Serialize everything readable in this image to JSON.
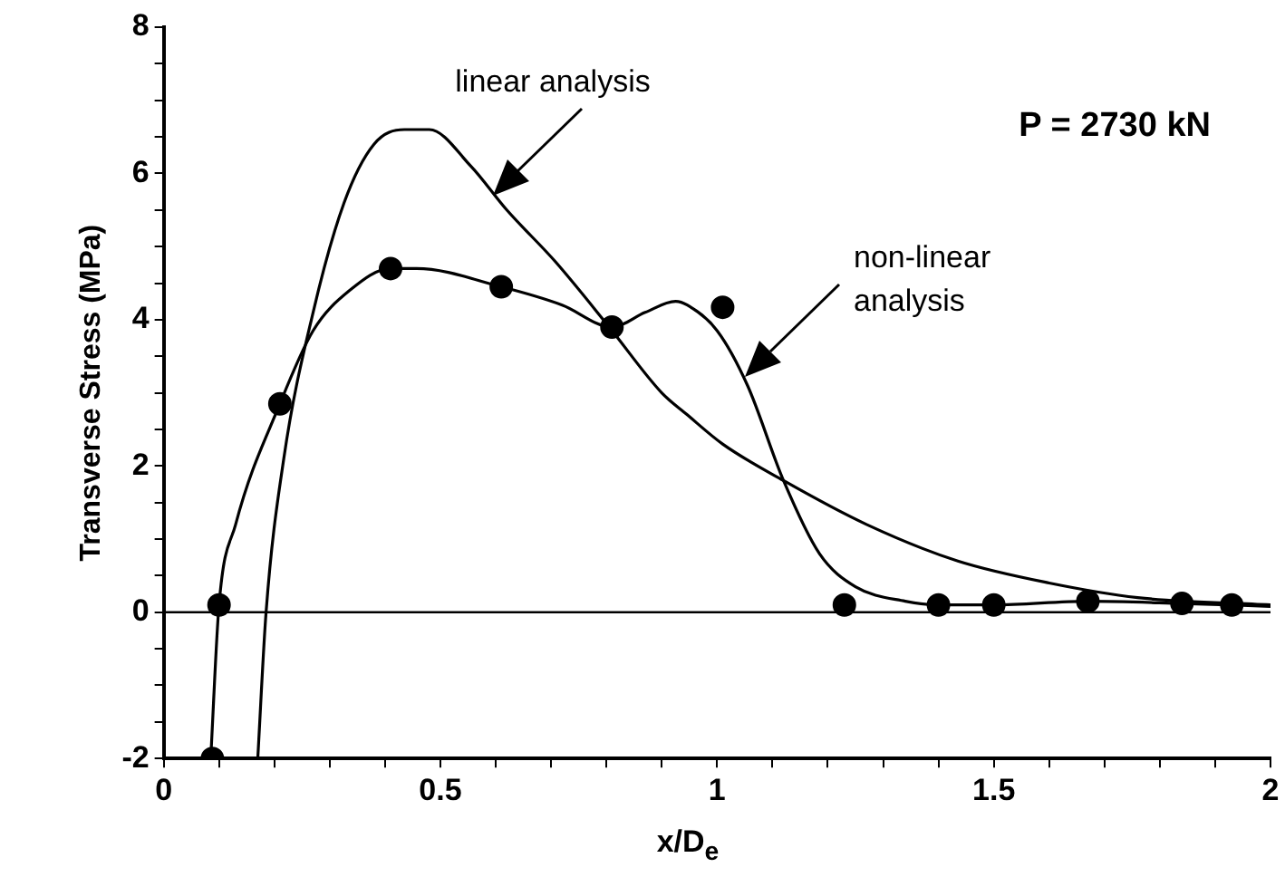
{
  "chart_data": {
    "type": "line",
    "xlabel": "x/D$_{e}$",
    "ylabel": "Transverse Stress (MPa)",
    "xlim": [
      0,
      2
    ],
    "ylim": [
      -2,
      8
    ],
    "xticks": [
      0,
      {
        "value": 0.1,
        "label": null
      },
      {
        "value": 0.2,
        "label": null
      },
      {
        "value": 0.3,
        "label": null
      },
      {
        "value": 0.4,
        "label": null
      },
      0.5,
      {
        "value": 0.6,
        "label": null
      },
      {
        "value": 0.7,
        "label": null
      },
      {
        "value": 0.8,
        "label": null
      },
      {
        "value": 0.9,
        "label": null
      },
      1,
      {
        "value": 1.1,
        "label": null
      },
      {
        "value": 1.2,
        "label": null
      },
      {
        "value": 1.3,
        "label": null
      },
      {
        "value": 1.4,
        "label": null
      },
      1.5,
      {
        "value": 1.6,
        "label": null
      },
      {
        "value": 1.7,
        "label": null
      },
      {
        "value": 1.8,
        "label": null
      },
      {
        "value": 1.9,
        "label": null
      },
      2
    ],
    "yticks": [
      -2,
      {
        "value": -1.5,
        "label": null
      },
      {
        "value": -1,
        "label": null
      },
      {
        "value": -0.5,
        "label": null
      },
      0,
      {
        "value": 0.5,
        "label": null
      },
      {
        "value": 1,
        "label": null
      },
      {
        "value": 1.5,
        "label": null
      },
      2,
      {
        "value": 2.5,
        "label": null
      },
      {
        "value": 3,
        "label": null
      },
      {
        "value": 3.5,
        "label": null
      },
      4,
      {
        "value": 4.5,
        "label": null
      },
      {
        "value": 5,
        "label": null
      },
      {
        "value": 5.5,
        "label": null
      },
      6,
      {
        "value": 6.5,
        "label": null
      },
      {
        "value": 7,
        "label": null
      },
      {
        "value": 7.5,
        "label": null
      },
      8
    ],
    "grid": false,
    "legend": false,
    "ref_lines": [
      {
        "axis": "y",
        "value": 0
      }
    ],
    "annotations": [
      "linear analysis",
      "non-linear\nanalysis",
      "P = 2730 kN"
    ],
    "series": [
      {
        "type": "line",
        "marker": "none",
        "color": "#000000",
        "x": [
          0.17,
          0.185,
          0.217,
          0.27,
          0.326,
          0.38,
          0.435,
          0.48,
          0.555,
          0.62,
          0.707,
          0.805,
          0.9,
          0.946,
          1.01,
          1.12,
          1.27,
          1.435,
          1.6,
          1.76,
          2.0
        ],
        "values": [
          -2,
          0,
          2.1,
          4.1,
          5.6,
          6.4,
          6.6,
          6.6,
          6.1,
          5.5,
          4.8,
          3.9,
          3.0,
          2.7,
          2.3,
          1.8,
          1.2,
          0.7,
          0.4,
          0.2,
          0.1
        ]
      },
      {
        "type": "line",
        "marker": "none",
        "color": "#000000",
        "x": [
          0.085,
          0.1,
          0.13,
          0.21,
          0.27,
          0.336,
          0.41,
          0.457,
          0.61,
          0.72,
          0.81,
          0.87,
          0.925,
          0.946,
          1.0,
          1.055,
          1.12,
          1.185,
          1.25,
          1.34,
          1.4,
          1.5,
          1.67,
          1.84,
          2.0
        ],
        "values": [
          -2,
          0.1,
          1.2,
          2.85,
          3.85,
          4.4,
          4.7,
          4.7,
          4.45,
          4.2,
          3.9,
          4.1,
          4.25,
          4.2,
          3.85,
          3.1,
          1.8,
          0.8,
          0.35,
          0.15,
          0.1,
          0.1,
          0.15,
          0.12,
          0.08
        ]
      },
      {
        "type": "scatter",
        "marker": "circle",
        "color": "#000000",
        "x": [
          0.088,
          0.1,
          0.21,
          0.41,
          0.61,
          0.81,
          1.01,
          1.23,
          1.4,
          1.5,
          1.67,
          1.84,
          1.93
        ],
        "values": [
          -2,
          0.1,
          2.85,
          4.7,
          4.45,
          3.9,
          4.17,
          0.1,
          0.1,
          0.1,
          0.15,
          0.12,
          0.1
        ]
      }
    ]
  }
}
